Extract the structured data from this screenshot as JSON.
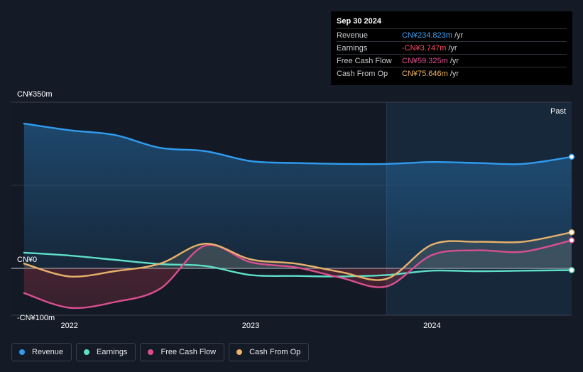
{
  "tooltip": {
    "date": "Sep 30 2024",
    "rows": [
      {
        "label": "Revenue",
        "value": "CN¥234.823m",
        "unit": "/yr",
        "color": "#3ea0f0"
      },
      {
        "label": "Earnings",
        "value": "-CN¥3.747m",
        "unit": "/yr",
        "color": "#ff4d5e"
      },
      {
        "label": "Free Cash Flow",
        "value": "CN¥59.325m",
        "unit": "/yr",
        "color": "#e3508f"
      },
      {
        "label": "Cash From Op",
        "value": "CN¥75.646m",
        "unit": "/yr",
        "color": "#f2b55e"
      }
    ]
  },
  "past_label": "Past",
  "legend": [
    {
      "label": "Revenue",
      "color": "#2f9cf0"
    },
    {
      "label": "Earnings",
      "color": "#5ee0c8"
    },
    {
      "label": "Free Cash Flow",
      "color": "#d94f8f"
    },
    {
      "label": "Cash From Op",
      "color": "#e8b26a"
    }
  ],
  "chart_data": {
    "type": "line",
    "y_tick_labels": [
      {
        "value": 350,
        "label": "CN¥350m"
      },
      {
        "value": 0,
        "label": "CN¥0"
      },
      {
        "value": -100,
        "label": "-CN¥100m"
      }
    ],
    "ylim": [
      -100,
      350
    ],
    "xlim": [
      2021.68,
      2024.77
    ],
    "x_tick_labels": [
      {
        "value": 2022.0,
        "label": "2022"
      },
      {
        "value": 2023.0,
        "label": "2023"
      },
      {
        "value": 2024.0,
        "label": "2024"
      }
    ],
    "past_start": 2023.75,
    "series": [
      {
        "name": "Revenue",
        "color": "#2f9cf0",
        "x": [
          2021.75,
          2022.0,
          2022.25,
          2022.5,
          2022.75,
          2023.0,
          2023.25,
          2023.5,
          2023.75,
          2024.0,
          2024.25,
          2024.5,
          2024.77
        ],
        "y": [
          305,
          291,
          281,
          254,
          247,
          226,
          222,
          220,
          220,
          224,
          222,
          220,
          235
        ]
      },
      {
        "name": "Earnings",
        "color": "#5ee0c8",
        "x": [
          2021.75,
          2022.0,
          2022.25,
          2022.5,
          2022.75,
          2023.0,
          2023.25,
          2023.5,
          2023.75,
          2024.0,
          2024.25,
          2024.5,
          2024.77
        ],
        "y": [
          33,
          27,
          18,
          9,
          5,
          -14,
          -16,
          -17,
          -14,
          -5,
          -6,
          -5,
          -3.7
        ]
      },
      {
        "name": "Free Cash Flow",
        "color": "#d94f8f",
        "x": [
          2021.75,
          2022.0,
          2022.25,
          2022.5,
          2022.75,
          2023.0,
          2023.25,
          2023.5,
          2023.75,
          2024.0,
          2024.25,
          2024.5,
          2024.77
        ],
        "y": [
          -52,
          -83,
          -71,
          -43,
          48,
          13,
          2,
          -20,
          -38,
          28,
          38,
          35,
          59
        ]
      },
      {
        "name": "Cash From Op",
        "color": "#e8b26a",
        "x": [
          2021.75,
          2022.0,
          2022.25,
          2022.5,
          2022.75,
          2023.0,
          2023.25,
          2023.5,
          2023.75,
          2024.0,
          2024.25,
          2024.5,
          2024.77
        ],
        "y": [
          10,
          -17,
          -6,
          10,
          52,
          19,
          10,
          -8,
          -22,
          50,
          56,
          56,
          76
        ]
      }
    ]
  }
}
